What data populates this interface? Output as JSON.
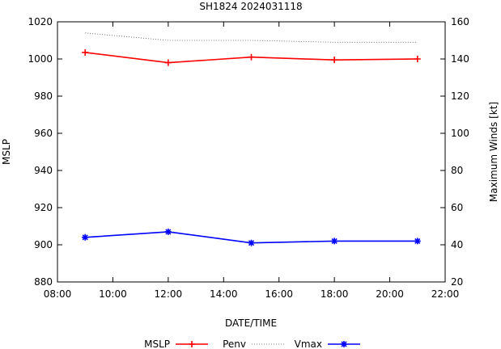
{
  "chart_data": {
    "type": "line",
    "title": "SH1824 2024031118",
    "xlabel": "DATE/TIME",
    "ylabel_left": "MSLP",
    "ylabel_right": "Maximum Winds [kt]",
    "x_ticks": [
      "08:00",
      "10:00",
      "12:00",
      "14:00",
      "16:00",
      "18:00",
      "20:00",
      "22:00"
    ],
    "x_hours_range": [
      8,
      22
    ],
    "y_left_range": [
      880,
      1020
    ],
    "y_left_ticks": [
      "880",
      "900",
      "920",
      "940",
      "960",
      "980",
      "1000",
      "1020"
    ],
    "y_right_range": [
      20,
      160
    ],
    "y_right_ticks": [
      "20",
      "40",
      "60",
      "80",
      "100",
      "120",
      "140",
      "160"
    ],
    "grid": false,
    "legend_position": "bottom",
    "series": [
      {
        "name": "MSLP",
        "axis": "left",
        "color": "#ff0000",
        "style": "solid",
        "marker": "plus",
        "x": [
          "09:00",
          "12:00",
          "15:00",
          "18:00",
          "21:00"
        ],
        "values": [
          1003.5,
          998,
          1001,
          999.5,
          1000
        ]
      },
      {
        "name": "Penv",
        "axis": "left",
        "color": "#555555",
        "style": "dotted",
        "marker": "none",
        "x": [
          "09:00",
          "12:00",
          "15:00",
          "18:00",
          "21:00"
        ],
        "values": [
          1014,
          1010,
          1010,
          1009,
          1009
        ]
      },
      {
        "name": "Vmax",
        "axis": "right",
        "color": "#0000ff",
        "style": "solid",
        "marker": "star",
        "x": [
          "09:00",
          "12:00",
          "15:00",
          "18:00",
          "21:00"
        ],
        "values": [
          44,
          47,
          41,
          42,
          42
        ]
      }
    ]
  }
}
